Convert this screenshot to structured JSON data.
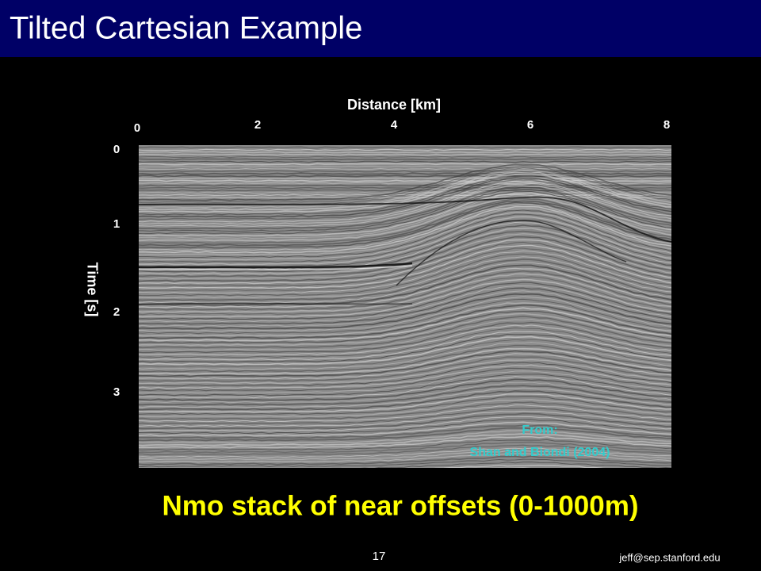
{
  "header": {
    "title": "Tilted Cartesian Example"
  },
  "figure": {
    "x_axis": {
      "label": "Distance [km]",
      "ticks": [
        "0",
        "2",
        "4",
        "6",
        "8"
      ]
    },
    "y_axis": {
      "label": "Time [s]",
      "ticks": [
        "0",
        "1",
        "2",
        "3"
      ]
    },
    "credit": [
      "From:",
      "Shan and Biondi (2004)"
    ]
  },
  "caption": "Nmo stack of near offsets (0-1000m)",
  "footer": {
    "page": "17",
    "email": "jeff@sep.stanford.edu"
  }
}
